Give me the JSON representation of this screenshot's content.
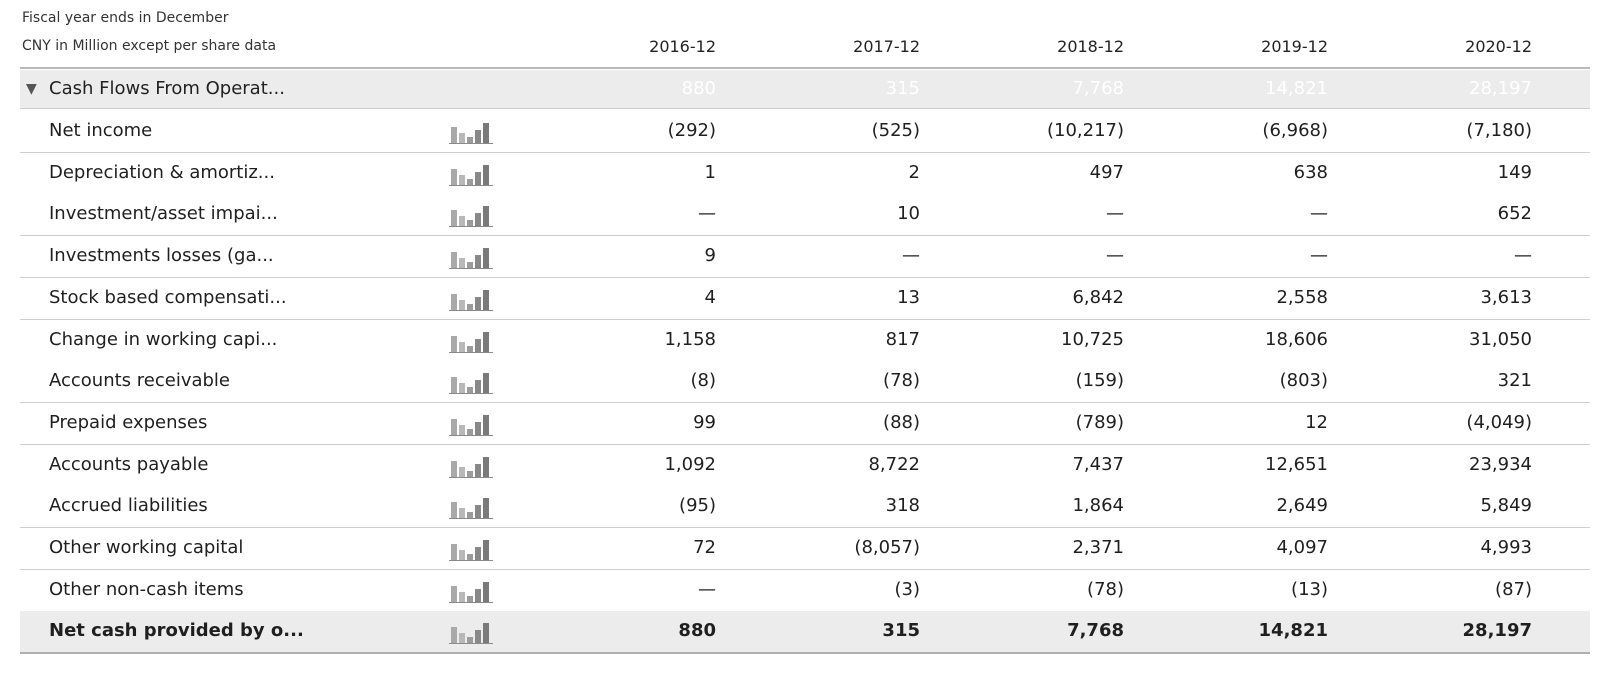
{
  "header": {
    "line1": "Fiscal year ends in December",
    "line2": "CNY in Million except per share data",
    "years": [
      "2016-12",
      "2017-12",
      "2018-12",
      "2019-12",
      "2020-12"
    ]
  },
  "section": {
    "toggle": "▼",
    "label": "Cash Flows From Operat...",
    "ghost_values": [
      "880",
      "315",
      "7,768",
      "14,821",
      "28,197"
    ]
  },
  "rows": [
    {
      "label": "Net income",
      "values": [
        "(292)",
        "(525)",
        "(10,217)",
        "(6,968)",
        "(7,180)"
      ]
    },
    {
      "label": "Depreciation & amortiz...",
      "values": [
        "1",
        "2",
        "497",
        "638",
        "149"
      ]
    },
    {
      "label": "Investment/asset impai...",
      "values": [
        "—",
        "10",
        "—",
        "—",
        "652"
      ]
    },
    {
      "label": "Investments losses (ga...",
      "values": [
        "9",
        "—",
        "—",
        "—",
        "—"
      ]
    },
    {
      "label": "Stock based compensati...",
      "values": [
        "4",
        "13",
        "6,842",
        "2,558",
        "3,613"
      ]
    },
    {
      "label": "Change in working capi...",
      "values": [
        "1,158",
        "817",
        "10,725",
        "18,606",
        "31,050"
      ]
    },
    {
      "label": "Accounts receivable",
      "values": [
        "(8)",
        "(78)",
        "(159)",
        "(803)",
        "321"
      ]
    },
    {
      "label": "Prepaid expenses",
      "values": [
        "99",
        "(88)",
        "(789)",
        "12",
        "(4,049)"
      ]
    },
    {
      "label": "Accounts payable",
      "values": [
        "1,092",
        "8,722",
        "7,437",
        "12,651",
        "23,934"
      ]
    },
    {
      "label": "Accrued liabilities",
      "values": [
        "(95)",
        "318",
        "1,864",
        "2,649",
        "5,849"
      ]
    },
    {
      "label": "Other working capital",
      "values": [
        "72",
        "(8,057)",
        "2,371",
        "4,097",
        "4,993"
      ]
    },
    {
      "label": "Other non-cash items",
      "values": [
        "—",
        "(3)",
        "(78)",
        "(13)",
        "(87)"
      ]
    },
    {
      "label": "Net cash provided by o...",
      "values": [
        "880",
        "315",
        "7,768",
        "14,821",
        "28,197"
      ]
    }
  ],
  "icons": {
    "row_chart": "mini-bar-chart-icon",
    "collapse": "triangle-down-icon"
  },
  "colors": {
    "row_border": "#cfcfcf",
    "header_rule": "#b9b9b9",
    "total_bg": "#ececec",
    "spark_bar": "#8c8c8c"
  }
}
